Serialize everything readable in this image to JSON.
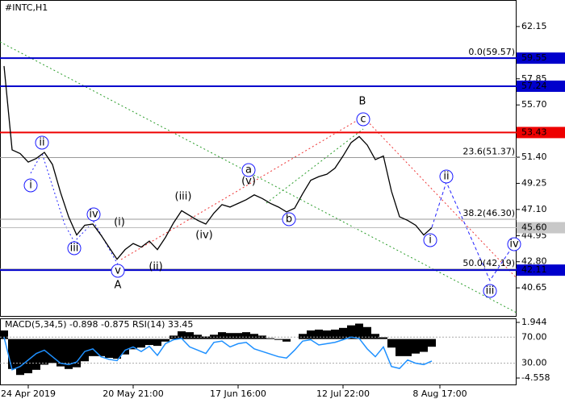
{
  "chart_data": {
    "type": "line",
    "title": "#INTC,H1",
    "categories": [
      null,
      null,
      null,
      "24 Apr 2019",
      null,
      null,
      null,
      null,
      null,
      null,
      null,
      null,
      null,
      null,
      null,
      null,
      "20 May 21:00",
      null,
      null,
      null,
      null,
      null,
      null,
      null,
      null,
      null,
      null,
      null,
      null,
      "17 Jun 16:00",
      null,
      null,
      null,
      null,
      null,
      null,
      null,
      null,
      null,
      null,
      null,
      null,
      "12 Jul 22:00",
      null,
      null,
      null,
      null,
      null,
      null,
      null,
      null,
      null,
      null,
      null,
      "8 Aug 17:00",
      null
    ],
    "series": [
      {
        "color": "#000000",
        "values": [
          58.9,
          52.0,
          51.7,
          51.0,
          51.3,
          51.8,
          50.8,
          48.5,
          46.5,
          45.0,
          45.8,
          45.9,
          45.0,
          44.0,
          43.0,
          43.8,
          44.3,
          44.0,
          44.5,
          43.8,
          44.8,
          46.0,
          47.0,
          46.6,
          46.2,
          45.9,
          46.8,
          47.5,
          47.3,
          47.6,
          47.9,
          48.3,
          48.0,
          47.6,
          47.3,
          46.9,
          47.2,
          48.4,
          49.5,
          49.8,
          50.0,
          50.5,
          51.5,
          52.6,
          53.1,
          52.4,
          51.2,
          51.5,
          48.6,
          46.5,
          46.2,
          45.8,
          45.0,
          45.6,
          null,
          null
        ]
      }
    ],
    "ylim": [
      38.34,
      64.2
    ],
    "yticks": [
      62.15,
      57.85,
      {
        "value": 55.7,
        "label": "55.70"
      },
      {
        "value": 51.4,
        "label": "51.40"
      },
      49.25,
      {
        "value": 47.1,
        "label": "47.10"
      },
      44.95,
      {
        "value": 42.8,
        "label": "42.80"
      },
      40.65
    ],
    "levels": [
      {
        "value": 59.55,
        "color": "#0000cc"
      },
      {
        "value": 57.24,
        "color": "#0000cc"
      },
      {
        "value": 53.43,
        "color": "#ee0000"
      },
      {
        "value": 42.11,
        "color": "#0000cc"
      }
    ],
    "current_price": {
      "value": 45.6,
      "label": "45.60"
    },
    "fib_levels": [
      {
        "value": 59.57,
        "label": "0.0(59.57)"
      },
      {
        "value": 51.37,
        "label": "23.6(51.37)"
      },
      {
        "value": 46.3,
        "label": "38.2(46.30)"
      },
      {
        "value": 42.19,
        "label": "50.0(42.19)"
      }
    ],
    "annotations": [
      {
        "text": "ii",
        "color": "#1a1aff",
        "circled": true
      },
      {
        "text": "i",
        "color": "#1a1aff",
        "circled": true
      },
      {
        "text": "iii",
        "color": "#1a1aff",
        "circled": true
      },
      {
        "text": "iv",
        "color": "#1a1aff",
        "circled": true
      },
      {
        "text": "v",
        "color": "#1a1aff",
        "circled": true
      },
      {
        "text": "A",
        "color": "#b22222",
        "circled": false
      },
      {
        "text": "(i)",
        "color": "#e00000",
        "circled": false
      },
      {
        "text": "(ii)",
        "color": "#e00000",
        "circled": false
      },
      {
        "text": "(iii)",
        "color": "#e00000",
        "circled": false
      },
      {
        "text": "(iv)",
        "color": "#e00000",
        "circled": false
      },
      {
        "text": "(v)",
        "color": "#e00000",
        "circled": false
      },
      {
        "text": "a",
        "color": "#1a1aff",
        "circled": true
      },
      {
        "text": "b",
        "color": "#1a1aff",
        "circled": true
      },
      {
        "text": "B",
        "color": "#b22222",
        "circled": false
      },
      {
        "text": "c",
        "color": "#1a1aff",
        "circled": true
      },
      {
        "text": "i",
        "color": "#1a1aff",
        "circled": true
      },
      {
        "text": "ii",
        "color": "#1a1aff",
        "circled": true
      },
      {
        "text": "iii",
        "color": "#1a1aff",
        "circled": true
      },
      {
        "text": "iv",
        "color": "#1a1aff",
        "circled": true
      }
    ],
    "indicator": {
      "label": "MACD(5,34,5) -0.898 -0.875 RSI(14) 33.45",
      "macd": {
        "color": "#000000",
        "ylim": [
          -5.31,
          2.32
        ],
        "yticks": [
          1.944,
          -4.558
        ],
        "values": [
          1.0,
          -3.5,
          -4.2,
          -4.0,
          -3.6,
          -3.0,
          -2.8,
          -3.2,
          -3.5,
          -3.3,
          -2.6,
          -2.0,
          -2.0,
          -2.2,
          -2.3,
          -1.8,
          -1.2,
          -1.0,
          -0.7,
          -0.8,
          -0.3,
          0.4,
          0.9,
          0.8,
          0.5,
          0.3,
          0.5,
          0.8,
          0.7,
          0.7,
          0.8,
          0.6,
          0.4,
          0.1,
          -0.1,
          -0.3,
          0.0,
          0.6,
          1.0,
          1.1,
          1.0,
          1.1,
          1.3,
          1.6,
          1.8,
          1.4,
          0.6,
          0.2,
          -1.0,
          -2.0,
          -2.0,
          -1.7,
          -1.5,
          -0.9,
          null,
          null
        ]
      },
      "rsi": {
        "color": "#1e90ff",
        "ylim": [
          -2.5,
          97.5
        ],
        "yticks": [
          {
            "value": 70,
            "label": "70.00"
          },
          {
            "value": 30,
            "label": "30.00"
          }
        ],
        "values": [
          70,
          20,
          25,
          35,
          45,
          50,
          40,
          30,
          28,
          32,
          48,
          52,
          40,
          36,
          34,
          50,
          55,
          48,
          56,
          42,
          60,
          66,
          68,
          55,
          50,
          45,
          62,
          64,
          55,
          60,
          62,
          52,
          48,
          44,
          40,
          38,
          50,
          64,
          66,
          58,
          60,
          62,
          66,
          70,
          68,
          52,
          40,
          55,
          25,
          22,
          35,
          30,
          28,
          33.45,
          null,
          null
        ]
      }
    }
  }
}
